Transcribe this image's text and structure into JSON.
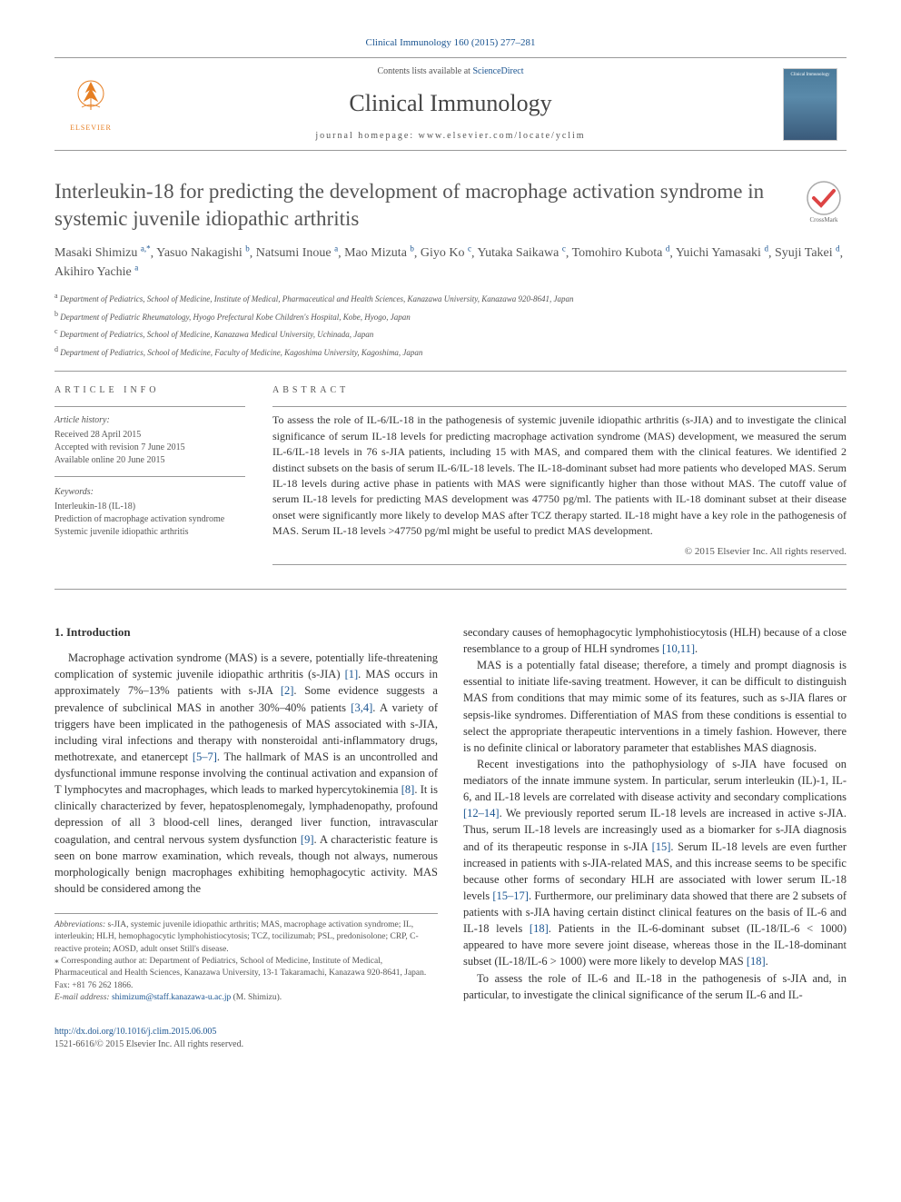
{
  "top_citation": "Clinical Immunology 160 (2015) 277–281",
  "header": {
    "contents_text": "Contents lists available at ",
    "sciencedirect": "ScienceDirect",
    "journal_name": "Clinical Immunology",
    "homepage_label": "journal homepage: ",
    "homepage_url": "www.elsevier.com/locate/yclim",
    "elsevier_label": "ELSEVIER",
    "cover_title": "Clinical Immunology"
  },
  "article": {
    "title": "Interleukin-18 for predicting the development of macrophage activation syndrome in systemic juvenile idiopathic arthritis",
    "crossmark_label": "CrossMark",
    "authors_html": "Masaki Shimizu ",
    "authors": [
      {
        "name": "Masaki Shimizu",
        "sup": "a,*"
      },
      {
        "name": "Yasuo Nakagishi",
        "sup": "b"
      },
      {
        "name": "Natsumi Inoue",
        "sup": "a"
      },
      {
        "name": "Mao Mizuta",
        "sup": "b"
      },
      {
        "name": "Giyo Ko",
        "sup": "c"
      },
      {
        "name": "Yutaka Saikawa",
        "sup": "c"
      },
      {
        "name": "Tomohiro Kubota",
        "sup": "d"
      },
      {
        "name": "Yuichi Yamasaki",
        "sup": "d"
      },
      {
        "name": "Syuji Takei",
        "sup": "d"
      },
      {
        "name": "Akihiro Yachie",
        "sup": "a"
      }
    ],
    "affiliations": [
      {
        "sup": "a",
        "text": "Department of Pediatrics, School of Medicine, Institute of Medical, Pharmaceutical and Health Sciences, Kanazawa University, Kanazawa 920-8641, Japan"
      },
      {
        "sup": "b",
        "text": "Department of Pediatric Rheumatology, Hyogo Prefectural Kobe Children's Hospital, Kobe, Hyogo, Japan"
      },
      {
        "sup": "c",
        "text": "Department of Pediatrics, School of Medicine, Kanazawa Medical University, Uchinada, Japan"
      },
      {
        "sup": "d",
        "text": "Department of Pediatrics, School of Medicine, Faculty of Medicine, Kagoshima University, Kagoshima, Japan"
      }
    ]
  },
  "article_info": {
    "heading": "ARTICLE INFO",
    "history_heading": "Article history:",
    "received": "Received 28 April 2015",
    "accepted": "Accepted with revision 7 June 2015",
    "online": "Available online 20 June 2015",
    "keywords_heading": "Keywords:",
    "keywords": [
      "Interleukin-18 (IL-18)",
      "Prediction of macrophage activation syndrome",
      "Systemic juvenile idiopathic arthritis"
    ]
  },
  "abstract": {
    "heading": "ABSTRACT",
    "text": "To assess the role of IL-6/IL-18 in the pathogenesis of systemic juvenile idiopathic arthritis (s-JIA) and to investigate the clinical significance of serum IL-18 levels for predicting macrophage activation syndrome (MAS) development, we measured the serum IL-6/IL-18 levels in 76 s-JIA patients, including 15 with MAS, and compared them with the clinical features. We identified 2 distinct subsets on the basis of serum IL-6/IL-18 levels. The IL-18-dominant subset had more patients who developed MAS. Serum IL-18 levels during active phase in patients with MAS were significantly higher than those without MAS. The cutoff value of serum IL-18 levels for predicting MAS development was 47750 pg/ml. The patients with IL-18 dominant subset at their disease onset were significantly more likely to develop MAS after TCZ therapy started. IL-18 might have a key role in the pathogenesis of MAS. Serum IL-18 levels >47750 pg/ml might be useful to predict MAS development.",
    "copyright": "© 2015 Elsevier Inc. All rights reserved."
  },
  "body": {
    "intro_heading": "1. Introduction",
    "col1_p1": "Macrophage activation syndrome (MAS) is a severe, potentially life-threatening complication of systemic juvenile idiopathic arthritis (s-JIA) [1]. MAS occurs in approximately 7%–13% patients with s-JIA [2]. Some evidence suggests a prevalence of subclinical MAS in another 30%–40% patients [3,4]. A variety of triggers have been implicated in the pathogenesis of MAS associated with s-JIA, including viral infections and therapy with nonsteroidal anti-inflammatory drugs, methotrexate, and etanercept [5–7]. The hallmark of MAS is an uncontrolled and dysfunctional immune response involving the continual activation and expansion of T lymphocytes and macrophages, which leads to marked hypercytokinemia [8]. It is clinically characterized by fever, hepatosplenomegaly, lymphadenopathy, profound depression of all 3 blood-cell lines, deranged liver function, intravascular coagulation, and central nervous system dysfunction [9]. A characteristic feature is seen on bone marrow examination, which reveals, though not always, numerous morphologically benign macrophages exhibiting hemophagocytic activity. MAS should be considered among the",
    "col2_p1": "secondary causes of hemophagocytic lymphohistiocytosis (HLH) because of a close resemblance to a group of HLH syndromes [10,11].",
    "col2_p2": "MAS is a potentially fatal disease; therefore, a timely and prompt diagnosis is essential to initiate life-saving treatment. However, it can be difficult to distinguish MAS from conditions that may mimic some of its features, such as s-JIA flares or sepsis-like syndromes. Differentiation of MAS from these conditions is essential to select the appropriate therapeutic interventions in a timely fashion. However, there is no definite clinical or laboratory parameter that establishes MAS diagnosis.",
    "col2_p3": "Recent investigations into the pathophysiology of s-JIA have focused on mediators of the innate immune system. In particular, serum interleukin (IL)-1, IL-6, and IL-18 levels are correlated with disease activity and secondary complications [12–14]. We previously reported serum IL-18 levels are increased in active s-JIA. Thus, serum IL-18 levels are increasingly used as a biomarker for s-JIA diagnosis and of its therapeutic response in s-JIA [15]. Serum IL-18 levels are even further increased in patients with s-JIA-related MAS, and this increase seems to be specific because other forms of secondary HLH are associated with lower serum IL-18 levels [15–17]. Furthermore, our preliminary data showed that there are 2 subsets of patients with s-JIA having certain distinct clinical features on the basis of IL-6 and IL-18 levels [18]. Patients in the IL-6-dominant subset (IL-18/IL-6 < 1000) appeared to have more severe joint disease, whereas those in the IL-18-dominant subset (IL-18/IL-6 > 1000) were more likely to develop MAS [18].",
    "col2_p4": "To assess the role of IL-6 and IL-18 in the pathogenesis of s-JIA and, in particular, to investigate the clinical significance of the serum IL-6 and IL-"
  },
  "footnotes": {
    "abbrev_label": "Abbreviations:",
    "abbrev_text": " s-JIA, systemic juvenile idiopathic arthritis; MAS, macrophage activation syndrome; IL, interleukin; HLH, hemophagocytic lymphohistiocytosis; TCZ, tocilizumab; PSL, predonisolone; CRP, C-reactive protein; AOSD, adult onset Still's disease.",
    "corr_label": "⁎ Corresponding author at: ",
    "corr_text": "Department of Pediatrics, School of Medicine, Institute of Medical, Pharmaceutical and Health Sciences, Kanazawa University, 13-1 Takaramachi, Kanazawa 920-8641, Japan. Fax: +81 76 262 1866.",
    "email_label": "E-mail address: ",
    "email": "shimizum@staff.kanazawa-u.ac.jp",
    "email_suffix": " (M. Shimizu)."
  },
  "bottom": {
    "doi": "http://dx.doi.org/10.1016/j.clim.2015.06.005",
    "issn": "1521-6616/© 2015 Elsevier Inc. All rights reserved."
  },
  "colors": {
    "link": "#1a5490",
    "text": "#333333",
    "muted": "#555555",
    "rule": "#999999",
    "elsevier_orange": "#e67e22"
  }
}
